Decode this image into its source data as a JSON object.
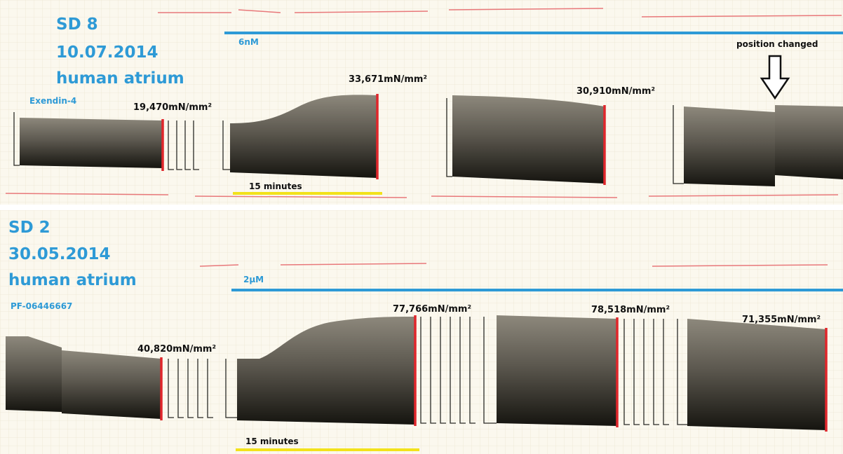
{
  "panels": [
    {
      "id": "SD 8",
      "date": "10.07.2014",
      "tissue": "human atrium",
      "compound": "Exendin-4",
      "concentration": "6nM",
      "forces": [
        "19,470mN/mm²",
        "33,671mN/mm²",
        "30,910mN/mm²"
      ],
      "note": "position changed",
      "time_scale": "15 minutes"
    },
    {
      "id": "SD 2",
      "date": "30.05.2014",
      "tissue": "human atrium",
      "compound": "PF-06446667",
      "concentration": "2µM",
      "forces": [
        "40,820mN/mm²",
        "77,766mN/mm²",
        "78,518mN/mm²",
        "71,355mN/mm²"
      ],
      "time_scale": "15 minutes"
    }
  ]
}
